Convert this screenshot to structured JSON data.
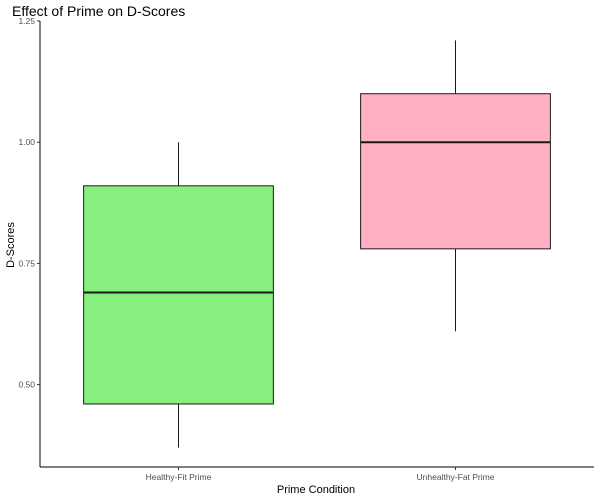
{
  "chart_data": {
    "type": "boxplot",
    "title": "Effect of Prime on D-Scores",
    "xlabel": "Prime Condition",
    "ylabel": "D-Scores",
    "categories": [
      "Healthy-Fit Prime",
      "Unhealthy-Fat Prime"
    ],
    "boxes": [
      {
        "category": "Healthy-Fit Prime",
        "whisker_low": 0.37,
        "q1": 0.46,
        "median": 0.69,
        "q3": 0.91,
        "whisker_high": 1.0,
        "color": "#86EF7E"
      },
      {
        "category": "Unhealthy-Fat Prime",
        "whisker_low": 0.61,
        "q1": 0.78,
        "median": 1.0,
        "q3": 1.1,
        "whisker_high": 1.21,
        "color": "#FFB1C3"
      }
    ],
    "yticks": [
      0.5,
      0.75,
      1.0,
      1.25
    ],
    "ytick_labels": [
      "0.50",
      "0.75",
      "1.00",
      "1.25"
    ],
    "ylim": [
      0.33,
      1.25
    ],
    "grid": false,
    "legend": "none"
  }
}
